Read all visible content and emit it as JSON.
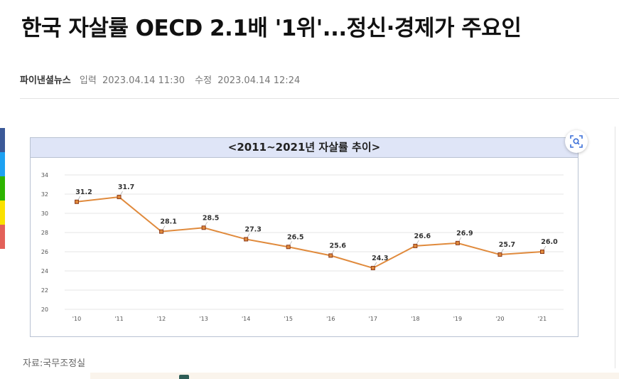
{
  "article": {
    "headline": "한국 자살률 OECD 2.1배 '1위'...정신·경제가 주요인",
    "source": "파이낸셜뉴스",
    "input_label": "입력",
    "input_time": "2023.04.14 11:30",
    "edit_label": "수정",
    "edit_time": "2023.04.14 12:24"
  },
  "share_colors": [
    "#3b5998",
    "#1da1f2",
    "#2db400",
    "#fae100",
    "#e36159"
  ],
  "figure": {
    "title": "<2011~2021년 자살률 추이>",
    "caption": "자료:국무조정실",
    "lens_icon": "lens-search-icon"
  },
  "chart_data": {
    "type": "line",
    "title": "<2011~2021년 자살률 추이>",
    "categories": [
      "'10",
      "'11",
      "'12",
      "'13",
      "'14",
      "'15",
      "'16",
      "'17",
      "'18",
      "'19",
      "'20",
      "'21"
    ],
    "values": [
      31.2,
      31.7,
      28.1,
      28.5,
      27.3,
      26.5,
      25.6,
      24.3,
      26.6,
      26.9,
      25.7,
      26.0
    ],
    "labels": [
      "31.2",
      "31.7",
      "28.1",
      "28.5",
      "27.3",
      "26.5",
      "25.6",
      "24.3",
      "26.6",
      "26.9",
      "25.7",
      "26.0"
    ],
    "ylim": [
      20,
      34
    ],
    "yticks": [
      "20",
      "22",
      "24",
      "26",
      "28",
      "30",
      "32",
      "34"
    ],
    "grid": true,
    "line_color": "#e08a3c",
    "marker_color": "#8b3a1a",
    "xlabel": "",
    "ylabel": ""
  }
}
